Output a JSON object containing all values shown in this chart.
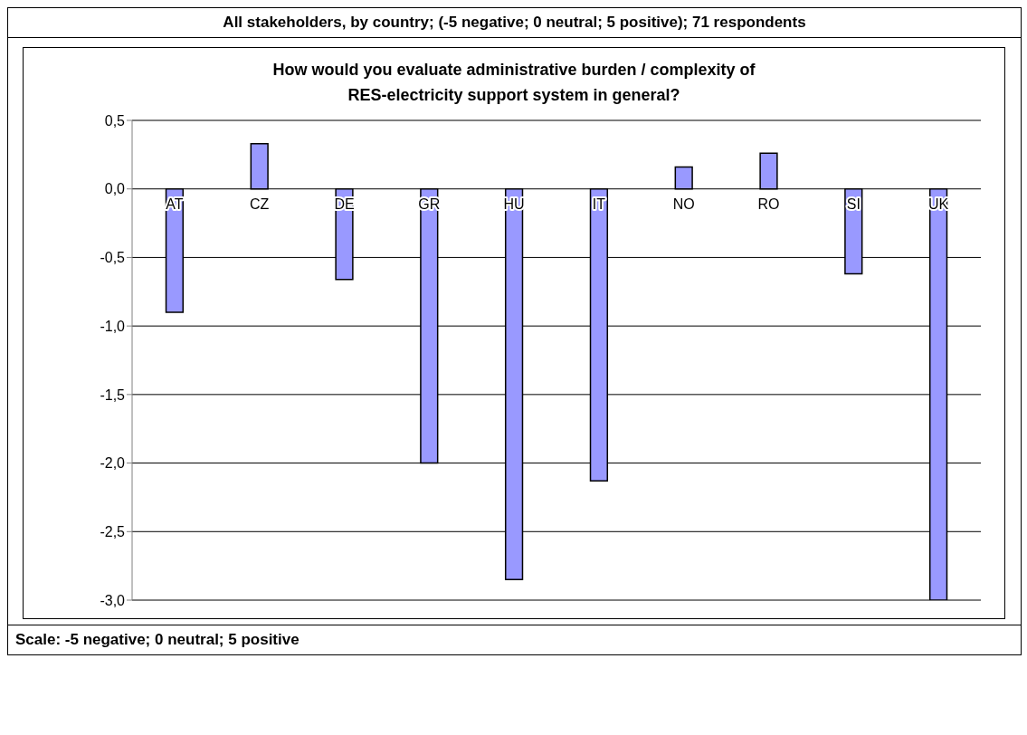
{
  "chart_data": {
    "type": "bar",
    "title": "All stakeholders, by country; (-5 negative; 0 neutral; 5 positive); 71 respondents",
    "subtitle": "How would you evaluate administrative burden / complexity of RES-electricity support system in general?",
    "annotations": [
      "Scale: -5 negative; 0 neutral; 5 positive"
    ],
    "categories": [
      "AT",
      "CZ",
      "DE",
      "GR",
      "HU",
      "IT",
      "NO",
      "RO",
      "SI",
      "UK"
    ],
    "values": [
      -0.9,
      0.33,
      -0.66,
      -2.0,
      -2.85,
      -2.13,
      0.16,
      0.26,
      -0.62,
      -3.0
    ],
    "color": "#9999ff",
    "ylim": [
      -3.0,
      0.5
    ],
    "yticks": [
      {
        "value": -3.0,
        "label": "-3,0"
      },
      {
        "value": -2.5,
        "label": "-2,5"
      },
      {
        "value": -2.0,
        "label": "-2,0"
      },
      {
        "value": -1.5,
        "label": "-1,5"
      },
      {
        "value": -1.0,
        "label": "-1,0"
      },
      {
        "value": -0.5,
        "label": "-0,5"
      },
      {
        "value": 0.0,
        "label": "0,0"
      },
      {
        "value": 0.5,
        "label": "0,5"
      }
    ],
    "grid": "y",
    "legend": false
  }
}
